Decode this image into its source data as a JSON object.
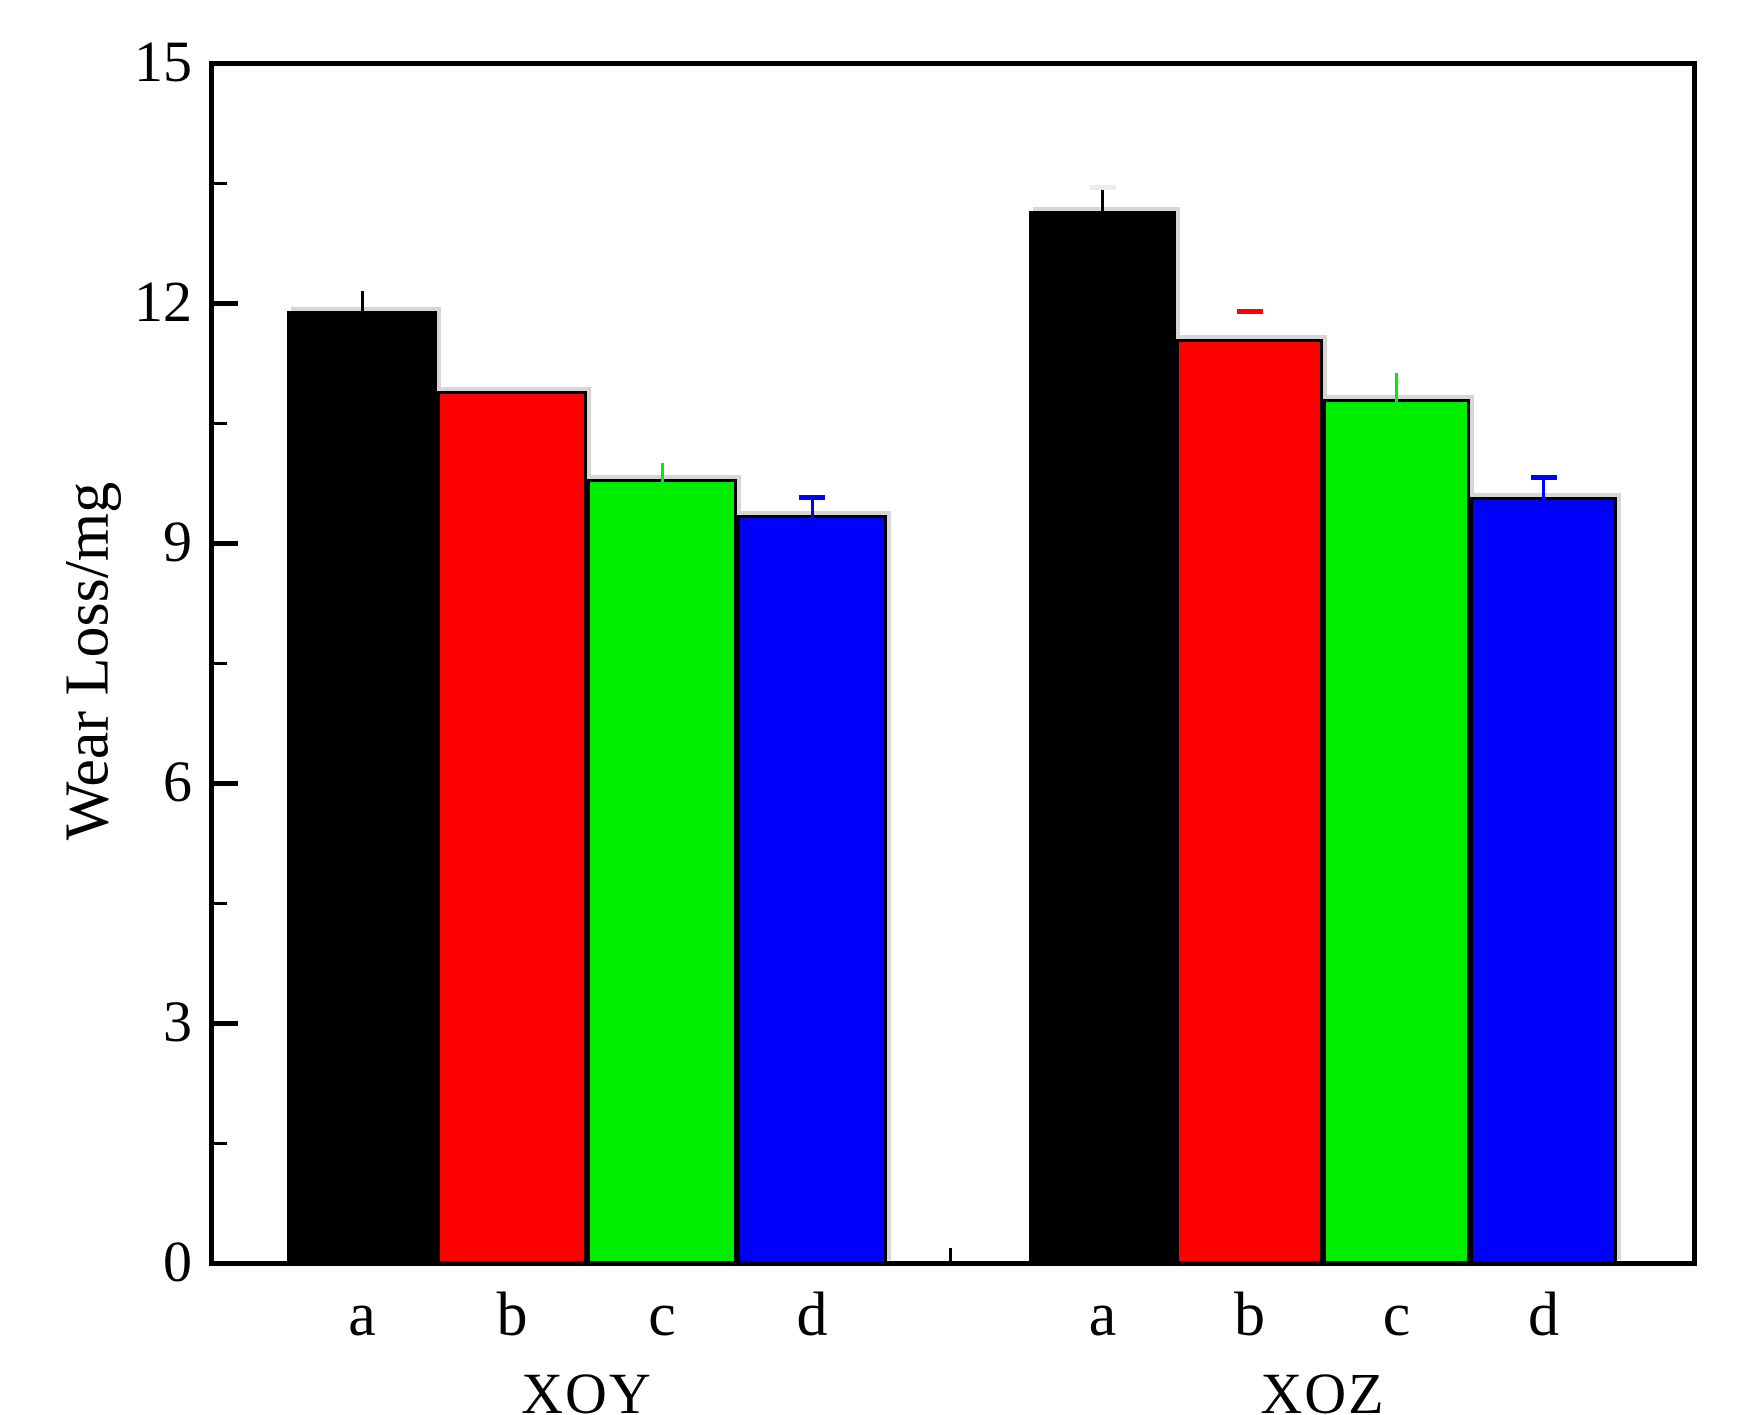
{
  "figure": {
    "background_color": "#ffffff",
    "frame_color": "#000000"
  },
  "chart_data": {
    "type": "bar",
    "title": "",
    "xlabel": "",
    "ylabel": "Wear Loss/mg",
    "ylim": [
      0,
      15
    ],
    "yticks": [
      0,
      3,
      6,
      9,
      12,
      15
    ],
    "yticks_minor": [
      1.5,
      4.5,
      7.5,
      10.5,
      13.5
    ],
    "grid": false,
    "legend": "none",
    "groups": [
      "XOY",
      "XOZ"
    ],
    "categories": [
      "a",
      "b",
      "c",
      "d"
    ],
    "series": [
      {
        "name": "a",
        "color": "#000000",
        "values": [
          11.9,
          13.15
        ]
      },
      {
        "name": "b",
        "color": "#ff0000",
        "values": [
          10.9,
          11.55
        ]
      },
      {
        "name": "c",
        "color": "#00ee00",
        "values": [
          9.8,
          10.8
        ]
      },
      {
        "name": "d",
        "color": "#0000ff",
        "values": [
          9.35,
          9.57
        ]
      }
    ],
    "bars": [
      {
        "group": "XOY",
        "category": "a",
        "color": "#000000",
        "value": 11.9,
        "error_top": 12.15,
        "whisker": true,
        "cap": false,
        "cap_color": null
      },
      {
        "group": "XOY",
        "category": "b",
        "color": "#ff0000",
        "value": 10.9,
        "error_top": null,
        "whisker": false,
        "cap": false,
        "cap_color": null
      },
      {
        "group": "XOY",
        "category": "c",
        "color": "#00ee00",
        "value": 9.8,
        "error_top": 10.0,
        "whisker": true,
        "cap": false,
        "cap_color": null
      },
      {
        "group": "XOY",
        "category": "d",
        "color": "#0000ff",
        "value": 9.35,
        "error_top": 9.57,
        "whisker": true,
        "cap": true,
        "cap_color": null
      },
      {
        "group": "XOZ",
        "category": "a",
        "color": "#000000",
        "value": 13.15,
        "error_top": 13.45,
        "whisker": true,
        "cap": true,
        "cap_color": "#ececec"
      },
      {
        "group": "XOZ",
        "category": "b",
        "color": "#ff0000",
        "value": 11.55,
        "error_top": 11.9,
        "whisker": false,
        "cap": true,
        "cap_color": null
      },
      {
        "group": "XOZ",
        "category": "c",
        "color": "#00ee00",
        "value": 10.8,
        "error_top": 11.12,
        "whisker": true,
        "cap": false,
        "cap_color": null
      },
      {
        "group": "XOZ",
        "category": "d",
        "color": "#0000ff",
        "value": 9.57,
        "error_top": 9.83,
        "whisker": true,
        "cap": true,
        "cap_color": null
      }
    ]
  }
}
